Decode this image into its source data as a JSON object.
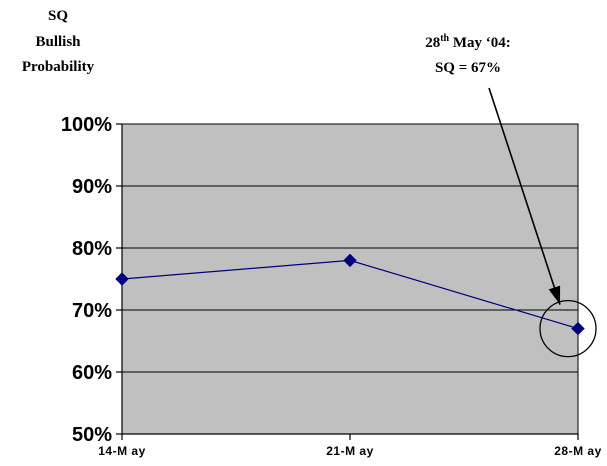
{
  "chart_data": {
    "type": "line",
    "ylabel_lines": [
      "SQ",
      "Bullish",
      "Probability"
    ],
    "categories": [
      "14-May",
      "21-May",
      "28-May"
    ],
    "x_tick_labels": [
      "14-M ay",
      "21-M ay",
      "28-M ay"
    ],
    "series": [
      {
        "values": [
          0.75,
          0.78,
          0.67
        ],
        "color": "#00007F"
      }
    ],
    "ylim": [
      0.5,
      1.0
    ],
    "yticks": [
      0.5,
      0.6,
      0.7,
      0.8,
      0.9,
      1.0
    ],
    "ytick_labels": [
      "50%",
      "60%",
      "70%",
      "80%",
      "90%",
      "100%"
    ],
    "grid": true,
    "plot_background": "#C0C0C0",
    "annotation": {
      "line1_prefix": "28",
      "line1_sup": "th",
      "line1_suffix": " May ‘04:",
      "line2": "SQ = 67%",
      "target_index": 2,
      "circled": true
    }
  }
}
